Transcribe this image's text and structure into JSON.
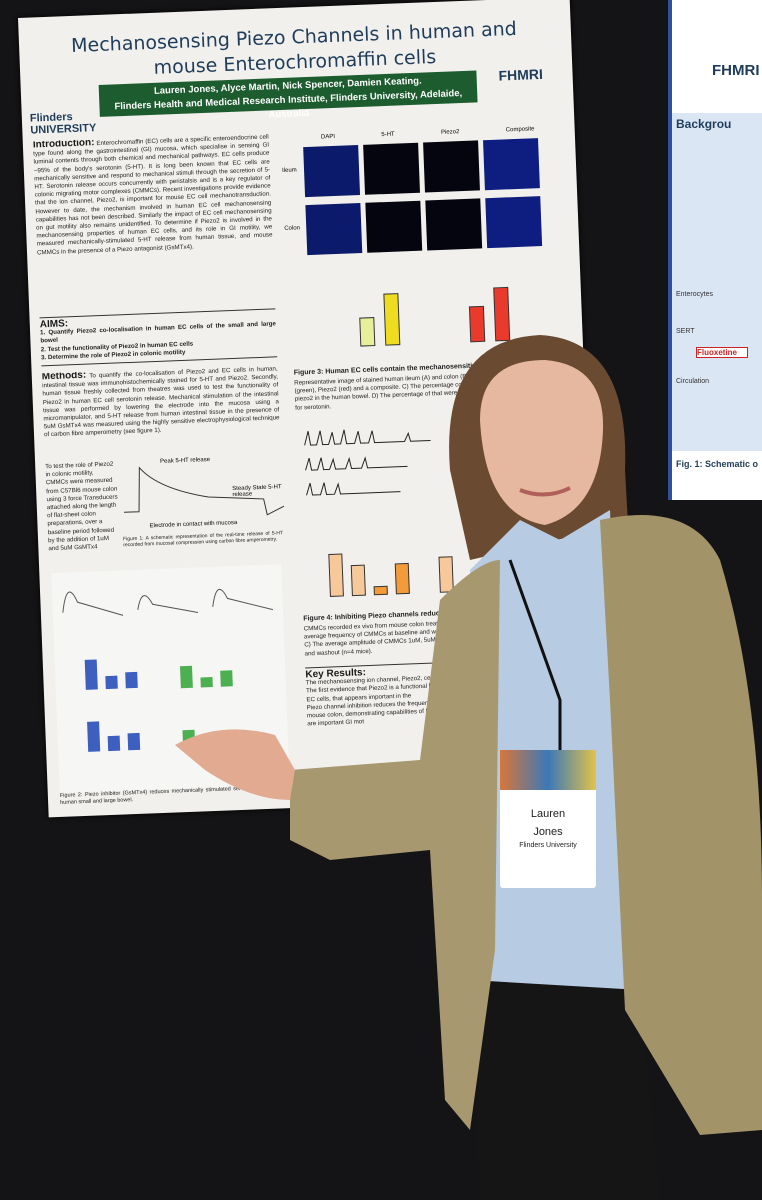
{
  "poster": {
    "title": "Mechanosensing Piezo Channels in human and mouse Enterochromaffin cells",
    "logo_left": "Flinders UNIVERSITY",
    "logo_right": "FHMRI",
    "authors": "Lauren Jones, Alyce Martin, Nick Spencer, Damien Keating.",
    "affiliation": "Flinders Health and Medical Research Institute, Flinders University, Adelaide, Australia",
    "introduction": {
      "heading": "Introduction:",
      "text": "Enterochromaffin (EC) cells are a specific enteroendocrine cell type found along the gastrointestinal (GI) mucosa, which specialise in sensing GI luminal contents through both chemical and mechanical pathways. EC cells produce ~95% of the body's serotonin (5-HT). It is long been known that EC cells are mechanically sensitive and respond to mechanical stimuli through the secretion of 5-HT. Serotonin release occurs concurrently with peristalsis and is a key regulator of colonic migrating motor complexes (CMMCs). Recent investigations provide evidence that the ion channel, Piezo2, is important for mouse EC cell mechanotransduction. However to date, the mechanism involved in human EC cell mechanosensing capabilities has not been described. Similarly the impact of EC cell mechanosensing on gut motility also remains unidentified. To determine if Piezo2 is involved in the mechanosensing properties of human EC cells, and its role in GI motility, we measured mechanically-stimulated 5-HT release from human tissue, and mouse CMMCs in the presence of a Piezo antagonist (GsMTx4)."
    },
    "aims": {
      "heading": "AIMS:",
      "items": [
        "1. Quantify Piezo2 co-localisation in human EC cells of the small and large bowel",
        "2. Test the functionality of Piezo2 in human EC cells",
        "3. Determine the role of Piezo2 in colonic motility"
      ]
    },
    "methods": {
      "heading": "Methods:",
      "text": "To quantify the co-localisation of Piezo2 and EC cells in human, intestinal tissue was immunohistochemically stained for 5-HT and Piezo2. Secondly, human tissue freshly collected from theatres was used to test the functionality of Piezo2 in human EC cell serotonin release. Mechanical stimulation of the intestinal tissue was performed by lowering the electrode into the mucosa using a micromanipulator, and 5-HT release from human intestinal tissue in the presence of 5uM GsMTx4 was measured using the highly sensitive electrophysiological technique of carbon fibre amperometry (see figure 1).",
      "text2": "To test the role of Piezo2 in colonic motility, CMMCs were measured from C57Bl6 mouse colon using 3 force Transducers attached along the length of flat-sheet colon preparations, over a baseline period followed by the addition of 1uM and 5uM GsMTx4"
    },
    "figure1": {
      "peak": "Peak 5-HT release",
      "steady": "Steady State 5-HT release",
      "electrode": "Electrode in contact with mucosa",
      "caption": "Figure 1: A schematic representation of the real-time release of 5-HT recorded from mucosal compression using carbon fibre amperometry."
    },
    "panel_labels": [
      "DAPI",
      "5-HT",
      "Piezo2",
      "Composite"
    ],
    "row_labels": [
      "Ileum",
      "Colon"
    ],
    "figure3_caption": "Figure 3: Human EC cells contain the mechanosensitive ion chan",
    "figure3_text": "Representative image of stained human ileum (A) and colon (B). 5-HT (green), Piezo2 (red) and a composite. C) The percentage containing piezo2 in the human bowel. D) The percentage of that were not positive for serotonin.",
    "figure4_caption": "Figure 4: Inhibiting Piezo channels reduces mouse C",
    "figure4_text": "CMMCs recorded ex vivo from mouse colon treated. The average frequency of CMMCs at baseline and washout. C) The average amplitude of CMMCs 1uM, 5uM GsMTx4 and washout (n=4 mice).",
    "figure2_caption": "Figure 2: Piezo inhibitor (GsMTx4) reduces mechanically stimulated serotonin release from human small and large bowel.",
    "key_results": {
      "heading": "Key Results:",
      "items": [
        "The mechanosensing ion channel, Piezo2, cells.",
        "The first evidence that Piezo2 is a functional human EC cells, that appears important in the",
        "Piezo channel inhibition reduces the frequen in ex vivo mouse colon, demonstrating capabilities of EC cells are important GI mot"
      ]
    }
  },
  "side_poster": {
    "logo": "FHMRI",
    "heading": "Backgrou",
    "labels": [
      "Enterocytes",
      "SERT",
      "Fluoxetine",
      "Circulation"
    ],
    "caption": "Fig. 1: Schematic o"
  },
  "badge": {
    "first": "Lauren",
    "last": "Jones",
    "org": "Flinders University"
  }
}
